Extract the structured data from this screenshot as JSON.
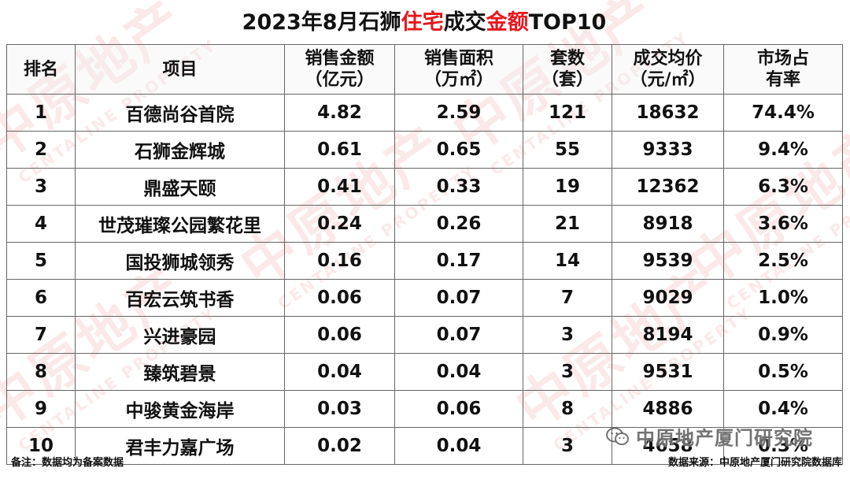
{
  "title": {
    "part1": "2023年8月石狮",
    "part2_red": "住宅",
    "part3": "成交",
    "part4_red": "金额",
    "part5": "TOP10"
  },
  "table": {
    "headers": [
      {
        "line1": "排名",
        "line2": ""
      },
      {
        "line1": "项目",
        "line2": ""
      },
      {
        "line1": "销售金额",
        "line2": "（亿元）"
      },
      {
        "line1": "销售面积",
        "line2": "（万㎡）"
      },
      {
        "line1": "套数",
        "line2": "（套）"
      },
      {
        "line1": "成交均价",
        "line2": "（元/㎡）"
      },
      {
        "line1": "市场占",
        "line2": "有率"
      }
    ],
    "rows": [
      [
        "1",
        "百德尚谷首院",
        "4.82",
        "2.59",
        "121",
        "18632",
        "74.4%"
      ],
      [
        "2",
        "石狮金辉城",
        "0.61",
        "0.65",
        "55",
        "9333",
        "9.4%"
      ],
      [
        "3",
        "鼎盛天颐",
        "0.41",
        "0.33",
        "19",
        "12362",
        "6.3%"
      ],
      [
        "4",
        "世茂璀璨公园繁花里",
        "0.24",
        "0.26",
        "21",
        "8918",
        "3.6%"
      ],
      [
        "5",
        "国投狮城领秀",
        "0.16",
        "0.17",
        "14",
        "9539",
        "2.5%"
      ],
      [
        "6",
        "百宏云筑书香",
        "0.06",
        "0.07",
        "7",
        "9029",
        "1.0%"
      ],
      [
        "7",
        "兴进豪园",
        "0.06",
        "0.07",
        "3",
        "8194",
        "0.9%"
      ],
      [
        "8",
        "臻筑碧景",
        "0.04",
        "0.04",
        "3",
        "9531",
        "0.5%"
      ],
      [
        "9",
        "中骏黄金海岸",
        "0.03",
        "0.06",
        "8",
        "4886",
        "0.4%"
      ],
      [
        "10",
        "君丰力嘉广场",
        "0.02",
        "0.04",
        "3",
        "4658",
        "0.3%"
      ]
    ]
  },
  "footer": {
    "note": "备注：数据均为备案数据",
    "source": "数据来源：中原地产厦门研究院数据库"
  },
  "wechat": {
    "label": "中原地产厦门研究院"
  },
  "watermark": {
    "big": "中原地产",
    "small": "CENTALINE PROPERTY"
  },
  "colors": {
    "accent_red": "#e4181e",
    "border": "#666666"
  }
}
